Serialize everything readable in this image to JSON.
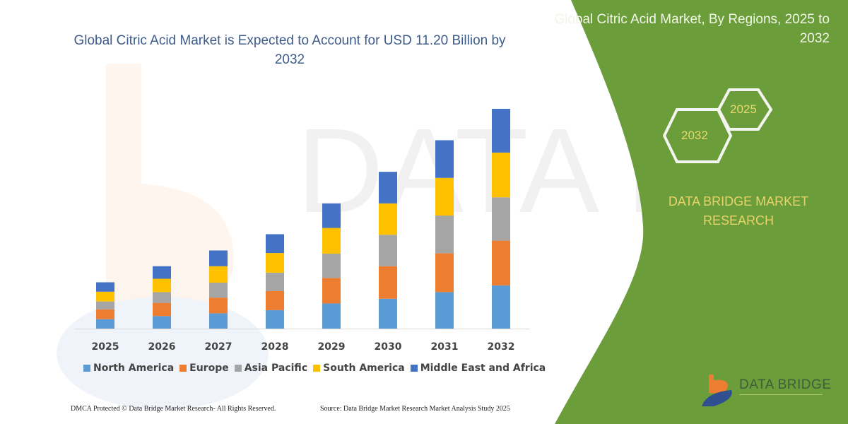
{
  "header": {
    "title": "Global Citric Acid Market is Expected to Account for USD 11.20 Billion by 2032",
    "side_title": "Global Citric Acid Market, By Regions, 2025 to 2032"
  },
  "side_panel": {
    "hex_start": "2025",
    "hex_end": "2032",
    "brand_text": "DATA BRIDGE MARKET RESEARCH",
    "logo_text": "DATA BRIDGE",
    "panel_color": "#6b9d3a"
  },
  "footer": {
    "left": "DMCA Protected © Data Bridge Market Research- All Rights Reserved.",
    "right": "Source: Data Bridge Market Research Market Analysis Study 2025"
  },
  "chart_data": {
    "type": "bar",
    "stacked": true,
    "title": "Global Citric Acid Market is Expected to Account for USD 11.20 Billion by 2032",
    "xlabel": "",
    "ylabel": "",
    "grid": false,
    "y_axis_visible": false,
    "legend_position": "bottom",
    "ylim": [
      0,
      11.2
    ],
    "categories": [
      "2025",
      "2026",
      "2027",
      "2028",
      "2029",
      "2030",
      "2031",
      "2032"
    ],
    "series": [
      {
        "name": "North America",
        "color": "#5b9bd5",
        "values": [
          0.48,
          0.64,
          0.78,
          0.94,
          1.28,
          1.52,
          1.86,
          2.2
        ]
      },
      {
        "name": "Europe",
        "color": "#ed7d31",
        "values": [
          0.5,
          0.67,
          0.8,
          0.97,
          1.3,
          1.66,
          1.98,
          2.28
        ]
      },
      {
        "name": "Asia Pacific",
        "color": "#a5a5a5",
        "values": [
          0.4,
          0.55,
          0.76,
          0.94,
          1.24,
          1.6,
          1.92,
          2.21
        ]
      },
      {
        "name": "South America",
        "color": "#ffc000",
        "values": [
          0.5,
          0.68,
          0.84,
          1.0,
          1.31,
          1.6,
          1.92,
          2.28
        ]
      },
      {
        "name": "Middle East and Africa",
        "color": "#4472c4",
        "values": [
          0.48,
          0.64,
          0.8,
          0.96,
          1.25,
          1.61,
          1.92,
          2.23
        ]
      }
    ]
  }
}
